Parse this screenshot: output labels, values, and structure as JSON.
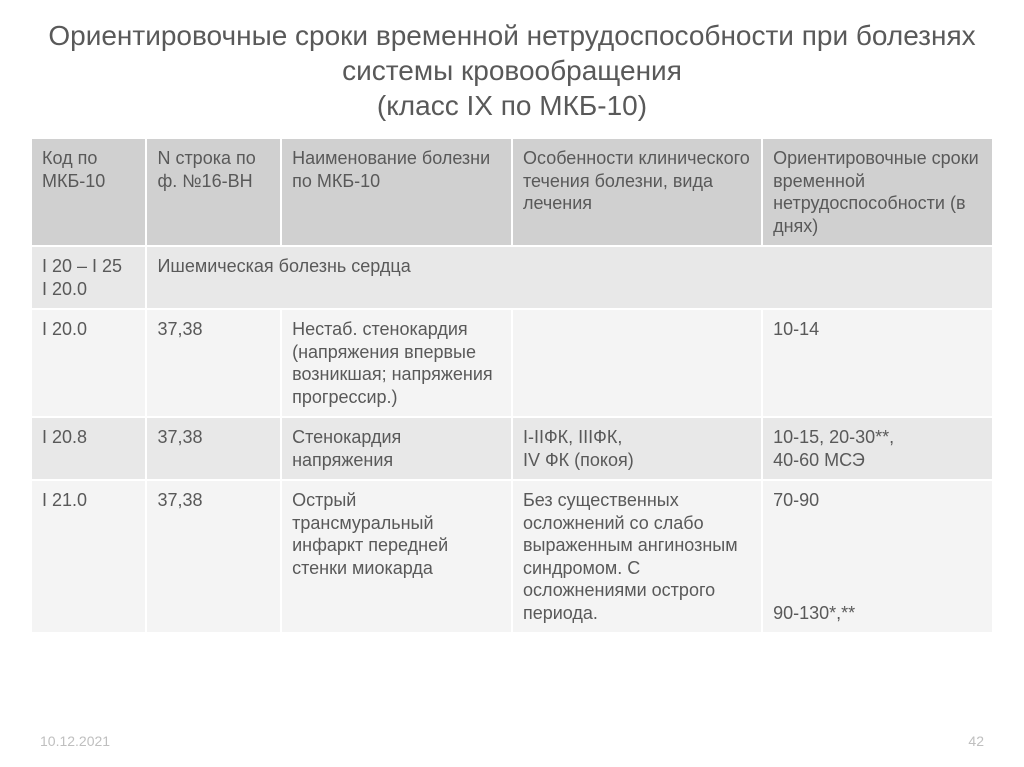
{
  "title": "Ориентировочные сроки временной нетрудоспособности при болезнях системы кровообращения\n(класс IX по МКБ-10)",
  "columns": {
    "c0": "Код по МКБ-10",
    "c1": "N строка по ф. №16-ВН",
    "c2": "Наименование болезни по МКБ-10",
    "c3": "Особенности клинического течения болезни, вида лечения",
    "c4": "Ориентировочные сроки временной нетрудоспособности (в днях)",
    "widths": [
      "12%",
      "14%",
      "24%",
      "26%",
      "24%"
    ]
  },
  "section": {
    "code": "I 20 – I 25\nI 20.0",
    "title": "Ишемическая болезнь сердца"
  },
  "rows": [
    {
      "c0": "I 20.0",
      "c1": "37,38",
      "c2": "Нестаб. стенокардия (напряжения впервые возникшая; напряжения прогрессир.)",
      "c3": "",
      "c4": "10-14",
      "band": "light"
    },
    {
      "c0": "I  20.8",
      "c1": "37,38",
      "c2": "Стенокардия напряжения",
      "c3": "I-IIФК, IIIФК,\nIV ФК (покоя)",
      "c4": "10-15, 20-30**,\n40-60 МСЭ",
      "band": "band"
    },
    {
      "c0": "I  21.0",
      "c1": "37,38",
      "c2": "Острый трансмуральный инфаркт передней стенки миокарда",
      "c3": "Без существенных осложнений со слабо выраженным ангинозным синдромом. С осложнениями острого периода.",
      "c4": "70-90\n\n\n\n\n90-130*,**",
      "band": "light"
    }
  ],
  "footer": {
    "date": "10.12.2021",
    "page": "42"
  },
  "colors": {
    "text": "#595959",
    "header_bg": "#d0d0d0",
    "band_bg": "#e8e8e8",
    "light_bg": "#f4f4f4",
    "border": "#ffffff",
    "footer": "#bfbfbf"
  },
  "typography": {
    "title_fontsize": 28,
    "body_fontsize": 18,
    "footer_fontsize": 14
  }
}
